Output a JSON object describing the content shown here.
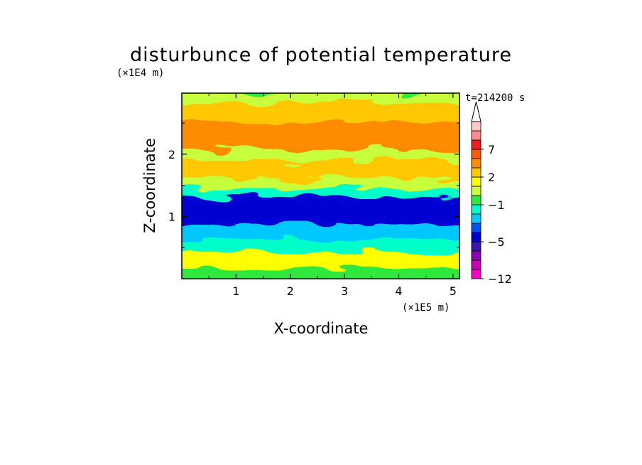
{
  "chart_data": {
    "type": "heatmap",
    "title": "disturbunce of potential temperature",
    "xlabel": "X-coordinate",
    "ylabel": "Z-coordinate",
    "x_unit": "(×1E5 m)",
    "y_unit": "(×1E4 m)",
    "annotation": "t=214200 s",
    "xlim": [
      0,
      5.12
    ],
    "ylim": [
      0,
      2.98
    ],
    "x_ticks": [
      1,
      2,
      3,
      4,
      5
    ],
    "y_ticks": [
      1,
      2
    ],
    "x_tick_labels": [
      "1",
      "2",
      "3",
      "4",
      "5"
    ],
    "y_tick_labels": [
      "1",
      "2"
    ],
    "colorbar": {
      "levels": [
        -12,
        -11,
        -9,
        -7,
        -5,
        -4,
        -3,
        -2,
        -1,
        0,
        1,
        2,
        3,
        5,
        7,
        9,
        11
      ],
      "colors": [
        "#ff00c8",
        "#c800b4",
        "#8c00b4",
        "#3c14b4",
        "#0000d2",
        "#0050ff",
        "#00c8ff",
        "#00ffc8",
        "#2ee83c",
        "#c8ff3c",
        "#ffff00",
        "#ffc800",
        "#ff8c00",
        "#ff5a00",
        "#f01e1e",
        "#ff8c8c",
        "#ffc8c8"
      ],
      "extend": "max",
      "tick_values": [
        7,
        2,
        -1,
        -5,
        -12
      ],
      "tick_labels": [
        "7",
        "2",
        "−1",
        "−5",
        "−12"
      ]
    },
    "layers": [
      {
        "z": [
          2.8,
          2.98
        ],
        "value": 0.5
      },
      {
        "z": [
          2.5,
          2.8
        ],
        "value": 2.5
      },
      {
        "z": [
          2.35,
          2.5
        ],
        "value": 4.0
      },
      {
        "z": [
          2.05,
          2.35
        ],
        "value": 3.5
      },
      {
        "z": [
          1.85,
          2.05
        ],
        "value": 0.5
      },
      {
        "z": [
          1.6,
          1.85
        ],
        "value": 2.5
      },
      {
        "z": [
          1.42,
          1.6
        ],
        "value": 0.5
      },
      {
        "z": [
          1.28,
          1.42
        ],
        "value": -1.5
      },
      {
        "z": [
          0.85,
          1.28
        ],
        "value": -4.5
      },
      {
        "z": [
          0.6,
          0.85
        ],
        "value": -2.5
      },
      {
        "z": [
          0.4,
          0.6
        ],
        "value": -1.5
      },
      {
        "z": [
          0.15,
          0.4
        ],
        "value": 1.5
      },
      {
        "z": [
          0.0,
          0.15
        ],
        "value": -0.5
      }
    ]
  }
}
